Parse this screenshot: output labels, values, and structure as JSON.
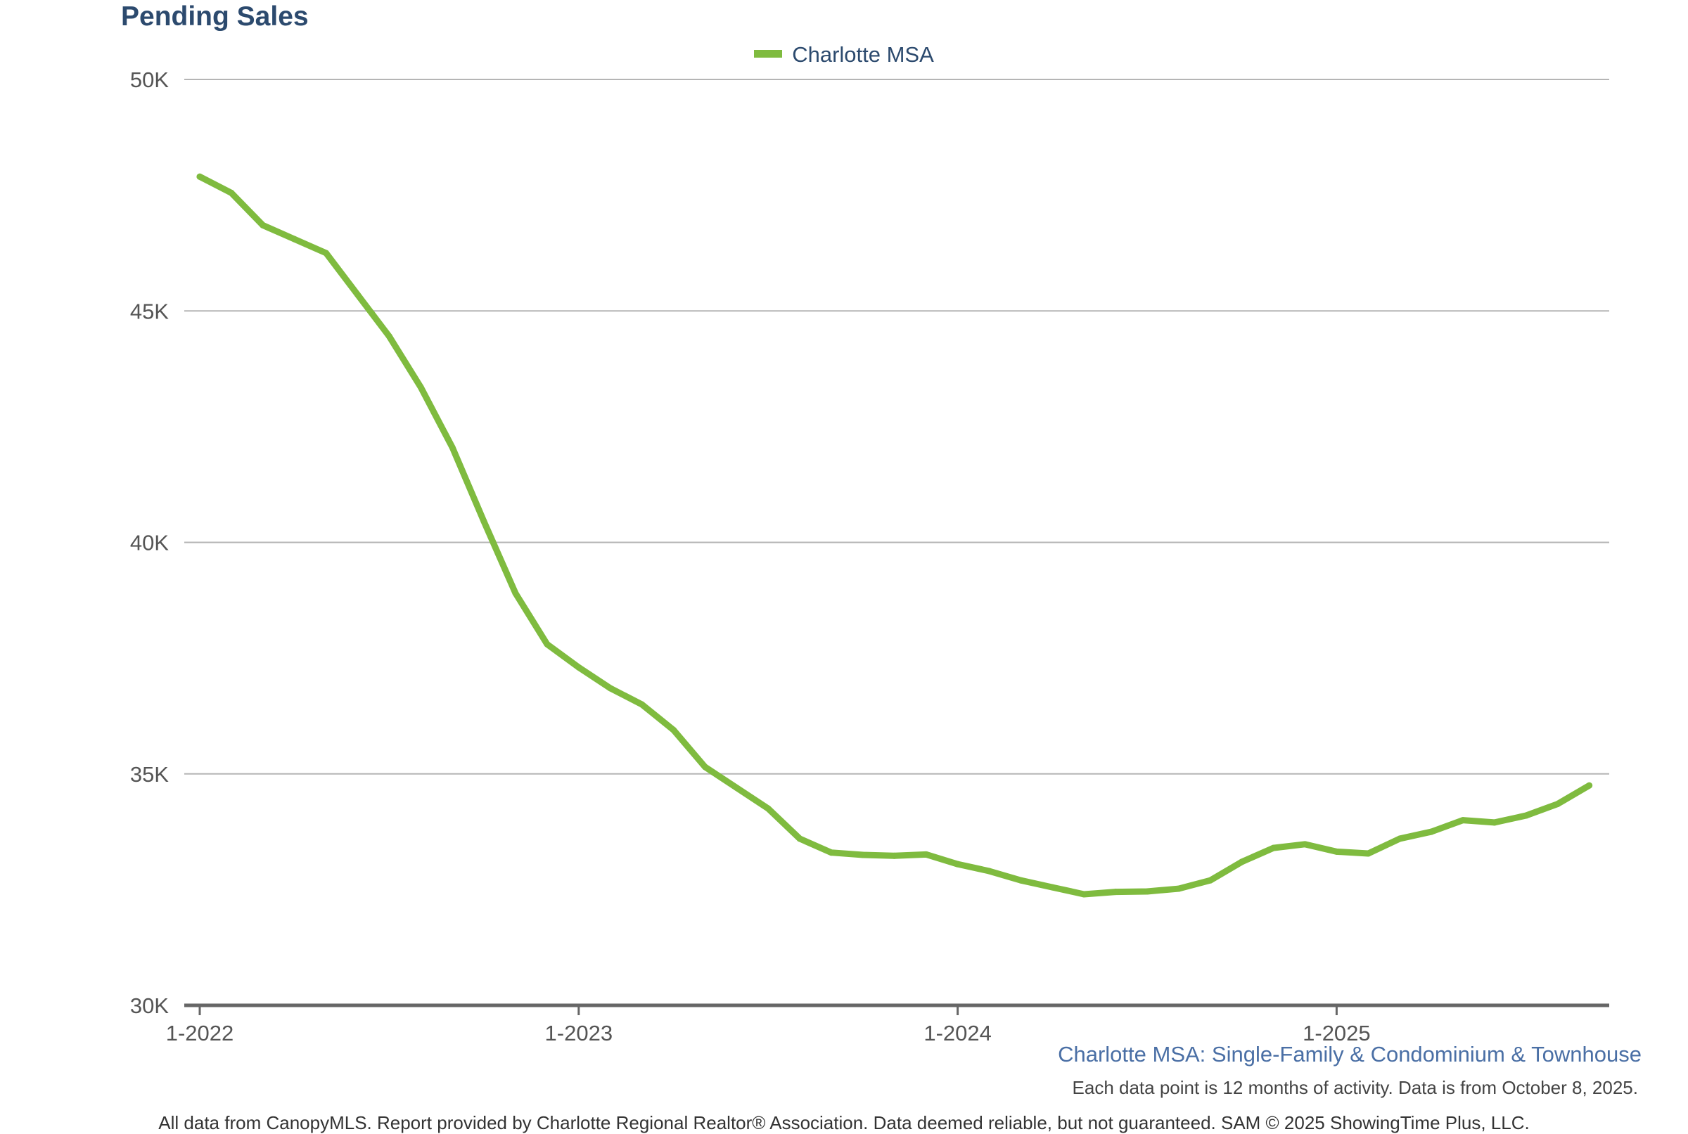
{
  "chart_data": {
    "type": "line",
    "title": "Pending Sales",
    "series": [
      {
        "name": "Charlotte MSA",
        "color": "#7fbb3f",
        "x": [
          "1-2022",
          "2-2022",
          "3-2022",
          "4-2022",
          "5-2022",
          "6-2022",
          "7-2022",
          "8-2022",
          "9-2022",
          "10-2022",
          "11-2022",
          "12-2022",
          "1-2023",
          "2-2023",
          "3-2023",
          "4-2023",
          "5-2023",
          "6-2023",
          "7-2023",
          "8-2023",
          "9-2023",
          "10-2023",
          "11-2023",
          "12-2023",
          "1-2024",
          "2-2024",
          "3-2024",
          "4-2024",
          "5-2024",
          "6-2024",
          "7-2024",
          "8-2024",
          "9-2024",
          "10-2024",
          "11-2024",
          "12-2024",
          "1-2025",
          "2-2025",
          "3-2025",
          "4-2025",
          "5-2025",
          "6-2025",
          "7-2025",
          "8-2025",
          "9-2025"
        ],
        "values": [
          47900,
          47550,
          46850,
          46550,
          46250,
          45350,
          44450,
          43350,
          42050,
          40450,
          38900,
          37800,
          37300,
          36850,
          36500,
          35950,
          35150,
          34700,
          34250,
          33600,
          33300,
          33250,
          33230,
          33260,
          33050,
          32900,
          32700,
          32550,
          32400,
          32450,
          32460,
          32520,
          32700,
          33100,
          33400,
          33480,
          33320,
          33280,
          33600,
          33750,
          34000,
          33950,
          34100,
          34350,
          34750
        ]
      }
    ],
    "x_ticks": [
      "1-2022",
      "1-2023",
      "1-2024",
      "1-2025"
    ],
    "y_ticks": [
      {
        "value": 30000,
        "label": "30K"
      },
      {
        "value": 35000,
        "label": "35K"
      },
      {
        "value": 40000,
        "label": "40K"
      },
      {
        "value": 45000,
        "label": "45K"
      },
      {
        "value": 50000,
        "label": "50K"
      }
    ],
    "ylim": [
      30000,
      50000
    ],
    "xlabel": "",
    "ylabel": "",
    "grid": true,
    "legend_position": "top-center"
  },
  "subtitle": "Charlotte MSA: Single-Family & Condominium & Townhouse",
  "note": "Each data point is 12 months of activity. Data is from October 8, 2025.",
  "footer": "All data from CanopyMLS. Report provided by Charlotte Regional Realtor® Association. Data deemed reliable, but not guaranteed. SAM © 2025 ShowingTime Plus, LLC."
}
